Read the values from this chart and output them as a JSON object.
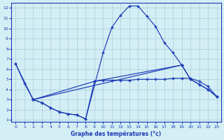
{
  "title": "Graphe des températures (°c)",
  "bg_color": "#d4eef5",
  "grid_color": "#a8cdd8",
  "line_color": "#1a3ab5",
  "xlim": [
    -0.5,
    23.5
  ],
  "ylim": [
    0.8,
    12.5
  ],
  "xticks": [
    0,
    1,
    2,
    3,
    4,
    5,
    6,
    7,
    8,
    9,
    10,
    11,
    12,
    13,
    14,
    15,
    16,
    17,
    18,
    19,
    20,
    21,
    22,
    23
  ],
  "yticks": [
    1,
    2,
    3,
    4,
    5,
    6,
    7,
    8,
    9,
    10,
    11,
    12
  ],
  "s1_x": [
    0,
    1,
    2,
    3,
    4,
    5,
    6,
    7,
    8,
    10,
    11,
    12,
    13,
    14,
    15,
    16,
    17,
    18,
    19
  ],
  "s1_y": [
    6.5,
    4.6,
    3.0,
    2.7,
    2.2,
    1.8,
    1.6,
    1.5,
    1.1,
    7.6,
    10.1,
    11.3,
    12.2,
    12.2,
    11.2,
    10.2,
    8.6,
    7.6,
    6.4
  ],
  "s2_x": [
    0,
    2,
    19,
    20,
    21,
    22,
    23
  ],
  "s2_y": [
    6.5,
    3.0,
    6.4,
    5.0,
    4.5,
    4.0,
    3.3
  ],
  "s3_x": [
    2,
    9,
    19,
    20,
    21,
    22,
    23
  ],
  "s3_y": [
    3.0,
    4.8,
    6.4,
    5.0,
    4.5,
    4.0,
    3.3
  ],
  "s4_x": [
    2,
    3,
    4,
    5,
    6,
    7,
    8,
    9,
    10,
    11,
    12,
    13,
    14,
    15,
    16,
    17,
    18,
    19,
    20,
    21,
    22,
    23
  ],
  "s4_y": [
    3.0,
    2.7,
    2.2,
    1.8,
    1.6,
    1.5,
    1.1,
    4.8,
    4.9,
    4.9,
    4.9,
    4.9,
    5.0,
    5.0,
    5.0,
    5.0,
    5.1,
    5.1,
    5.1,
    4.8,
    4.3,
    3.3
  ]
}
